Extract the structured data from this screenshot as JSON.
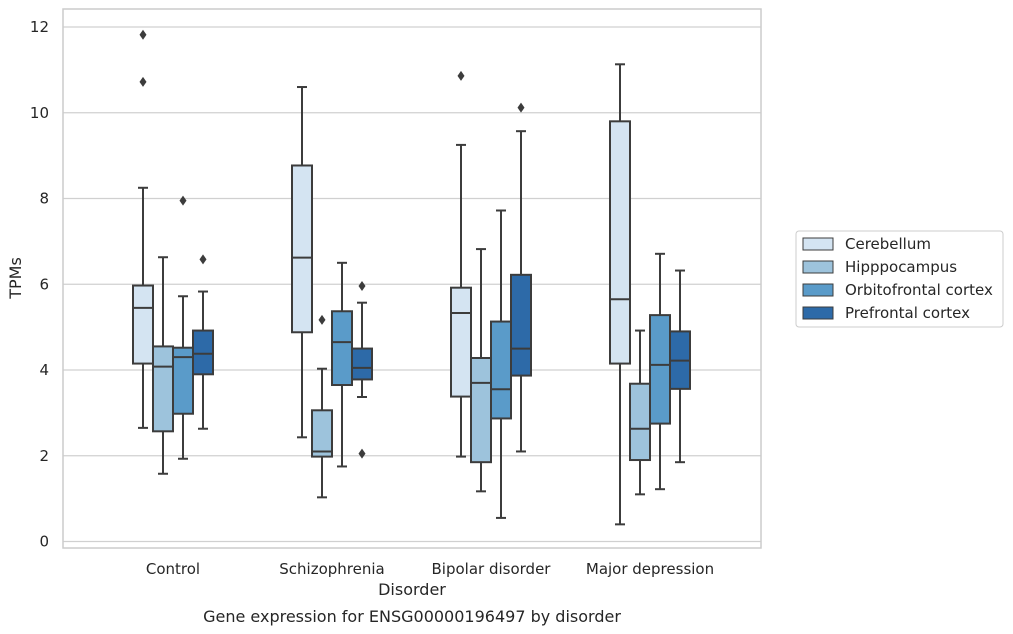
{
  "chart_data": {
    "type": "box",
    "title": "",
    "caption": "Gene expression for ENSG00000196497 by disorder",
    "xlabel": "Disorder",
    "ylabel": "TPMs",
    "ylim": [
      -0.15,
      12.4
    ],
    "yticks": [
      0,
      2,
      4,
      6,
      8,
      10,
      12
    ],
    "grid": "horizontal",
    "legend_position": "right",
    "categories": [
      "Control",
      "Schizophrenia",
      "Bipolar disorder",
      "Major depression"
    ],
    "series": [
      {
        "name": "Cerebellum",
        "color": "#d4e4f2",
        "boxes": [
          {
            "whisker_low": 2.65,
            "q1": 4.15,
            "median": 5.45,
            "q3": 5.97,
            "whisker_high": 8.25,
            "outliers": [
              10.72,
              11.82
            ]
          },
          {
            "whisker_low": 2.43,
            "q1": 4.88,
            "median": 6.62,
            "q3": 8.77,
            "whisker_high": 10.6,
            "outliers": []
          },
          {
            "whisker_low": 1.98,
            "q1": 3.38,
            "median": 5.33,
            "q3": 5.92,
            "whisker_high": 9.25,
            "outliers": [
              10.86
            ]
          },
          {
            "whisker_low": 0.4,
            "q1": 4.15,
            "median": 5.65,
            "q3": 9.8,
            "whisker_high": 11.13,
            "outliers": []
          }
        ]
      },
      {
        "name": "Hipppocampus",
        "color": "#9dc3dc",
        "boxes": [
          {
            "whisker_low": 1.58,
            "q1": 2.57,
            "median": 4.08,
            "q3": 4.55,
            "whisker_high": 6.63,
            "outliers": []
          },
          {
            "whisker_low": 1.03,
            "q1": 1.98,
            "median": 2.1,
            "q3": 3.06,
            "whisker_high": 4.03,
            "outliers": [
              5.17
            ]
          },
          {
            "whisker_low": 1.17,
            "q1": 1.85,
            "median": 3.7,
            "q3": 4.28,
            "whisker_high": 6.82,
            "outliers": []
          },
          {
            "whisker_low": 1.1,
            "q1": 1.9,
            "median": 2.63,
            "q3": 3.68,
            "whisker_high": 4.92,
            "outliers": []
          }
        ]
      },
      {
        "name": "Orbitofrontal cortex",
        "color": "#5a9bc9",
        "boxes": [
          {
            "whisker_low": 1.93,
            "q1": 2.98,
            "median": 4.3,
            "q3": 4.52,
            "whisker_high": 5.72,
            "outliers": [
              7.95
            ]
          },
          {
            "whisker_low": 1.75,
            "q1": 3.65,
            "median": 4.65,
            "q3": 5.37,
            "whisker_high": 6.5,
            "outliers": []
          },
          {
            "whisker_low": 0.55,
            "q1": 2.87,
            "median": 3.55,
            "q3": 5.13,
            "whisker_high": 7.72,
            "outliers": []
          },
          {
            "whisker_low": 1.22,
            "q1": 2.75,
            "median": 4.12,
            "q3": 5.28,
            "whisker_high": 6.71,
            "outliers": []
          }
        ]
      },
      {
        "name": "Prefrontal cortex",
        "color": "#2d6aa8",
        "boxes": [
          {
            "whisker_low": 2.63,
            "q1": 3.9,
            "median": 4.38,
            "q3": 4.92,
            "whisker_high": 5.83,
            "outliers": [
              6.58
            ]
          },
          {
            "whisker_low": 3.37,
            "q1": 3.78,
            "median": 4.05,
            "q3": 4.5,
            "whisker_high": 5.57,
            "outliers": [
              5.96,
              2.05
            ]
          },
          {
            "whisker_low": 2.1,
            "q1": 3.87,
            "median": 4.5,
            "q3": 6.22,
            "whisker_high": 9.57,
            "outliers": [
              10.12
            ]
          },
          {
            "whisker_low": 1.85,
            "q1": 3.56,
            "median": 4.22,
            "q3": 4.9,
            "whisker_high": 6.32,
            "outliers": []
          }
        ]
      }
    ]
  }
}
